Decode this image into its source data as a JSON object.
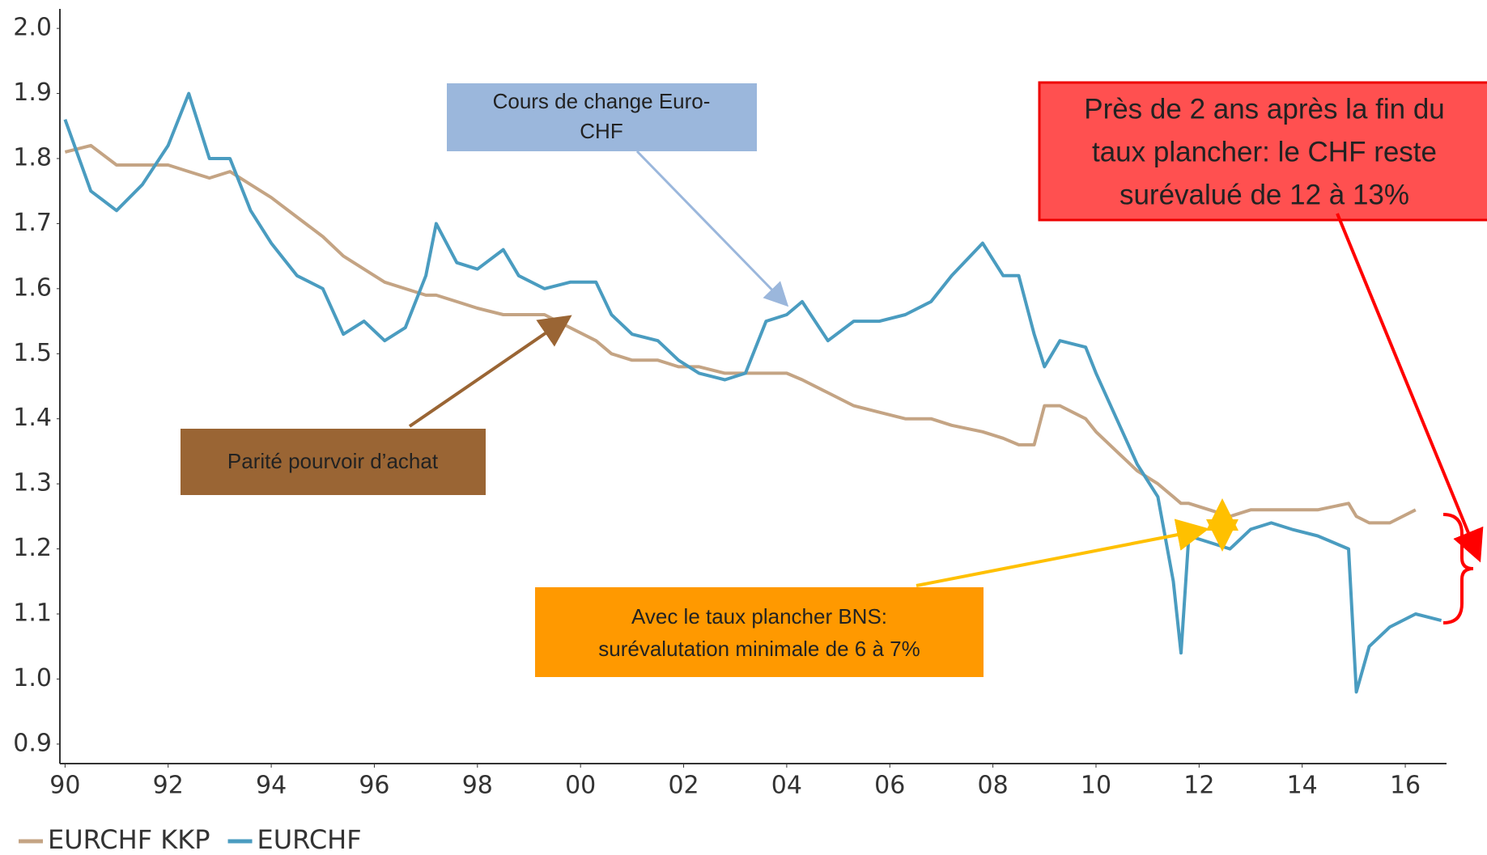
{
  "chart_data": {
    "type": "line",
    "x": [
      1990.0,
      1990.5,
      1991.0,
      1991.5,
      1992.0,
      1992.4,
      1992.8,
      1993.2,
      1993.6,
      1994.0,
      1994.5,
      1995.0,
      1995.4,
      1995.8,
      1996.2,
      1996.6,
      1997.0,
      1997.2,
      1997.6,
      1998.0,
      1998.5,
      1998.8,
      1999.3,
      1999.8,
      2000.3,
      2000.6,
      2001.0,
      2001.5,
      2001.9,
      2002.3,
      2002.8,
      2003.2,
      2003.6,
      2004.0,
      2004.3,
      2004.8,
      2005.3,
      2005.8,
      2006.3,
      2006.8,
      2007.2,
      2007.8,
      2008.2,
      2008.5,
      2008.8,
      2009.0,
      2009.3,
      2009.8,
      2010.0,
      2010.4,
      2010.8,
      2011.2,
      2011.5,
      2011.65,
      2011.8,
      2012.2,
      2012.6,
      2013.0,
      2013.4,
      2013.8,
      2014.3,
      2014.9,
      2015.05,
      2015.3,
      2015.7,
      2016.2,
      2016.7
    ],
    "series": [
      {
        "name": "EURCHF KKP",
        "color": "#c4a484",
        "values": [
          1.81,
          1.82,
          1.79,
          1.79,
          1.79,
          1.78,
          1.77,
          1.78,
          1.76,
          1.74,
          1.71,
          1.68,
          1.65,
          1.63,
          1.61,
          1.6,
          1.59,
          1.59,
          1.58,
          1.57,
          1.56,
          1.56,
          1.56,
          1.54,
          1.52,
          1.5,
          1.49,
          1.49,
          1.48,
          1.48,
          1.47,
          1.47,
          1.47,
          1.47,
          1.46,
          1.44,
          1.42,
          1.41,
          1.4,
          1.4,
          1.39,
          1.38,
          1.37,
          1.36,
          1.36,
          1.42,
          1.42,
          1.4,
          1.38,
          1.35,
          1.32,
          1.3,
          1.28,
          1.27,
          1.27,
          1.26,
          1.25,
          1.26,
          1.26,
          1.26,
          1.26,
          1.27,
          1.25,
          1.24,
          1.24,
          1.26,
          null
        ]
      },
      {
        "name": "EURCHF",
        "color": "#4a9cc0",
        "values": [
          1.86,
          1.75,
          1.72,
          1.76,
          1.82,
          1.9,
          1.8,
          1.8,
          1.72,
          1.67,
          1.62,
          1.6,
          1.53,
          1.55,
          1.52,
          1.54,
          1.62,
          1.7,
          1.64,
          1.63,
          1.66,
          1.62,
          1.6,
          1.61,
          1.61,
          1.56,
          1.53,
          1.52,
          1.49,
          1.47,
          1.46,
          1.47,
          1.55,
          1.56,
          1.58,
          1.52,
          1.55,
          1.55,
          1.56,
          1.58,
          1.62,
          1.67,
          1.62,
          1.62,
          1.53,
          1.48,
          1.52,
          1.51,
          1.47,
          1.4,
          1.33,
          1.28,
          1.15,
          1.04,
          1.22,
          1.21,
          1.2,
          1.23,
          1.24,
          1.23,
          1.22,
          1.2,
          0.98,
          1.05,
          1.08,
          1.1,
          1.09
        ]
      }
    ],
    "xlim": [
      1989.9,
      2016.8
    ],
    "xticks": [
      {
        "value": 1990,
        "label": "90"
      },
      {
        "value": 1992,
        "label": "92"
      },
      {
        "value": 1994,
        "label": "94"
      },
      {
        "value": 1996,
        "label": "96"
      },
      {
        "value": 1998,
        "label": "98"
      },
      {
        "value": 2000,
        "label": "00"
      },
      {
        "value": 2002,
        "label": "02"
      },
      {
        "value": 2004,
        "label": "04"
      },
      {
        "value": 2006,
        "label": "06"
      },
      {
        "value": 2008,
        "label": "08"
      },
      {
        "value": 2010,
        "label": "10"
      },
      {
        "value": 2012,
        "label": "12"
      },
      {
        "value": 2014,
        "label": "14"
      },
      {
        "value": 2016,
        "label": "16"
      }
    ],
    "ylim": [
      0.87,
      2.03
    ],
    "yticks": [
      0.9,
      {
        "value": 1.0,
        "label": "1.0"
      },
      1.1,
      1.2,
      1.3,
      1.4,
      1.5,
      1.6,
      1.7,
      1.8,
      1.9,
      {
        "value": 2.0,
        "label": "2.0"
      }
    ],
    "grid": false,
    "legend": "bottom-left",
    "annotations": [
      {
        "lines": [
          "Cours de change Euro-",
          "CHF"
        ]
      },
      {
        "lines": [
          "Parité pourvoir d’achat"
        ]
      },
      {
        "lines": [
          "Avec le taux plancher BNS:",
          "surévalutation minimale de 6 à 7%"
        ]
      },
      {
        "lines": [
          "Près de 2 ans après la fin du",
          "taux plancher: le CHF reste",
          "surévalué de 12 à 13%"
        ]
      }
    ]
  }
}
